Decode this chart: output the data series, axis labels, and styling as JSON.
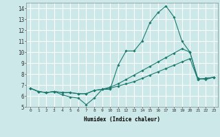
{
  "title": "",
  "xlabel": "Humidex (Indice chaleur)",
  "ylabel": "",
  "xlim": [
    -0.5,
    23.5
  ],
  "ylim": [
    5,
    14.5
  ],
  "yticks": [
    5,
    6,
    7,
    8,
    9,
    10,
    11,
    12,
    13,
    14
  ],
  "xticks": [
    0,
    1,
    2,
    3,
    4,
    5,
    6,
    7,
    8,
    9,
    10,
    11,
    12,
    13,
    14,
    15,
    16,
    17,
    18,
    19,
    20,
    21,
    22,
    23
  ],
  "bg_color": "#cce8e8",
  "grid_color": "#ffffff",
  "line_color": "#1a7a6e",
  "series": [
    [
      6.7,
      6.4,
      6.3,
      6.4,
      6.1,
      5.9,
      5.8,
      5.2,
      5.8,
      6.6,
      6.6,
      8.8,
      10.1,
      10.1,
      11.0,
      12.7,
      13.6,
      14.2,
      13.2,
      11.0,
      10.0,
      7.6,
      7.5,
      7.7
    ],
    [
      6.7,
      6.4,
      6.3,
      6.4,
      6.3,
      6.3,
      6.2,
      6.2,
      6.5,
      6.6,
      6.7,
      6.9,
      7.1,
      7.3,
      7.6,
      7.9,
      8.2,
      8.5,
      8.8,
      9.1,
      9.4,
      7.5,
      7.6,
      7.7
    ],
    [
      6.7,
      6.4,
      6.3,
      6.4,
      6.3,
      6.3,
      6.2,
      6.2,
      6.5,
      6.6,
      6.8,
      7.1,
      7.5,
      7.9,
      8.3,
      8.7,
      9.1,
      9.5,
      9.9,
      10.3,
      10.0,
      7.5,
      7.6,
      7.7
    ]
  ],
  "figsize": [
    3.2,
    2.0
  ],
  "dpi": 100
}
